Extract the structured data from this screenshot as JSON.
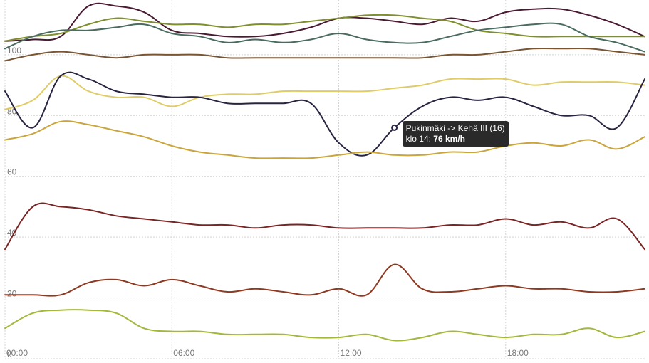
{
  "chart_data": {
    "type": "line",
    "xlabel": "",
    "ylabel": "",
    "xlim": [
      0,
      23
    ],
    "ylim": [
      0,
      118
    ],
    "y_ticks": [
      0,
      20,
      40,
      60,
      80,
      100
    ],
    "y_tick_labels": [
      "0",
      "20",
      "40",
      "60",
      "80",
      "100"
    ],
    "x_ticks": [
      0,
      6,
      12,
      18
    ],
    "x_tick_labels": [
      "00:00",
      "06:00",
      "12:00",
      "18:00"
    ],
    "grid": true,
    "legend": "none",
    "x": [
      0,
      1,
      2,
      3,
      4,
      5,
      6,
      7,
      8,
      9,
      10,
      11,
      12,
      13,
      14,
      15,
      16,
      17,
      18,
      19,
      20,
      21,
      22,
      23
    ],
    "series": [
      {
        "color": "#4a1a33",
        "values": [
          104.5,
          105,
          106,
          116,
          116,
          114,
          108,
          107,
          106,
          106,
          107,
          109,
          112,
          112,
          111,
          110,
          112,
          111,
          114,
          115,
          115,
          113,
          110,
          106
        ]
      },
      {
        "color": "#7f8f2e",
        "values": [
          104.5,
          106,
          107,
          110,
          112,
          111,
          110,
          110,
          109,
          110,
          110,
          111,
          112,
          113,
          113,
          112,
          111,
          108,
          107,
          106,
          106,
          106,
          106,
          106
        ]
      },
      {
        "color": "#4a6b60",
        "values": [
          102,
          106,
          108,
          108,
          109,
          110,
          107,
          106,
          104,
          105,
          104,
          105,
          107,
          105,
          104,
          104,
          106,
          108,
          109,
          110,
          110,
          106,
          104,
          101
        ]
      },
      {
        "color": "#7a5532",
        "values": [
          98,
          100,
          101,
          100,
          99,
          100,
          100,
          100,
          99,
          99,
          99,
          99,
          99,
          99,
          99,
          99,
          100,
          100,
          101,
          102,
          102,
          102,
          101,
          100
        ]
      },
      {
        "color": "#e0cc66",
        "values": [
          82,
          85,
          93,
          88,
          86,
          86,
          83,
          86,
          87,
          87,
          88,
          88,
          88,
          88,
          89,
          90,
          92,
          92,
          92,
          90,
          91,
          91,
          91,
          90
        ]
      },
      {
        "color": "#2a2440",
        "values": [
          88,
          76,
          93,
          92,
          88,
          87,
          86,
          86,
          84,
          84,
          84,
          84,
          71,
          67,
          76,
          83,
          86,
          85,
          86,
          83,
          80,
          80,
          76,
          92
        ]
      },
      {
        "color": "#c9a53a",
        "values": [
          72,
          74,
          78,
          77,
          75,
          73,
          70,
          68,
          67,
          66,
          66,
          66,
          67,
          68,
          67,
          67,
          68,
          68,
          70,
          71,
          70,
          72,
          69,
          73
        ]
      },
      {
        "color": "#7a2525",
        "values": [
          36,
          50,
          50,
          49,
          47,
          46,
          45,
          44,
          44,
          43,
          44,
          44,
          43,
          43,
          43,
          43,
          44,
          44,
          46,
          44,
          45,
          43,
          46,
          36
        ]
      },
      {
        "color": "#8e3a22",
        "values": [
          21,
          21,
          21,
          25,
          26,
          24,
          26,
          24,
          22,
          23,
          22,
          21,
          23,
          21,
          31,
          23,
          22,
          23,
          24,
          23,
          23,
          22,
          22,
          23
        ]
      },
      {
        "color": "#a3b83a",
        "values": [
          10,
          15,
          16,
          16,
          15,
          10,
          9,
          9,
          8,
          8,
          8,
          7,
          7,
          8,
          6,
          7,
          9,
          8,
          7,
          8,
          8,
          10,
          7,
          9
        ]
      }
    ],
    "tooltip": {
      "line1": "Pukinmäki -> Kehä III (16)",
      "line2_prefix": "klo 14: ",
      "line2_value": "76 km/h",
      "series_index": 5,
      "x": 14
    }
  }
}
